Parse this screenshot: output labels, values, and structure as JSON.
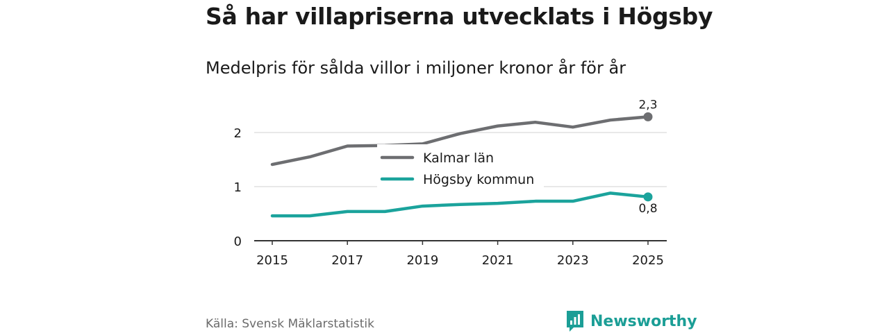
{
  "title": "Så har villapriserna utvecklats i Högsby",
  "subtitle": "Medelpris för sålda villor i miljoner kronor år för år",
  "source": "Källa: Svensk Mäklarstatistik",
  "brand": "Newsworthy",
  "colors": {
    "kalmar": "#6d6e71",
    "hogsby": "#1ba39c",
    "brand": "#1b9e96",
    "grid": "#d9d9d9",
    "axis": "#333333"
  },
  "chart_data": {
    "type": "line",
    "x": [
      2015,
      2016,
      2017,
      2018,
      2019,
      2020,
      2021,
      2022,
      2023,
      2024,
      2025
    ],
    "xticks": [
      "2015",
      "2017",
      "2019",
      "2021",
      "2023",
      "2025"
    ],
    "yticks": [
      "0",
      "1",
      "2"
    ],
    "ylim": [
      0,
      2.3
    ],
    "grid": true,
    "legend_position": "center",
    "series": [
      {
        "name": "Kalmar län",
        "color": "#6d6e71",
        "values": [
          1.41,
          1.55,
          1.75,
          1.76,
          1.79,
          1.98,
          2.12,
          2.19,
          2.1,
          2.23,
          2.29
        ],
        "end_label": "2,3"
      },
      {
        "name": "Högsby kommun",
        "color": "#1ba39c",
        "values": [
          0.46,
          0.46,
          0.54,
          0.54,
          0.64,
          0.67,
          0.69,
          0.73,
          0.73,
          0.88,
          0.81
        ],
        "end_label": "0,8"
      }
    ]
  }
}
